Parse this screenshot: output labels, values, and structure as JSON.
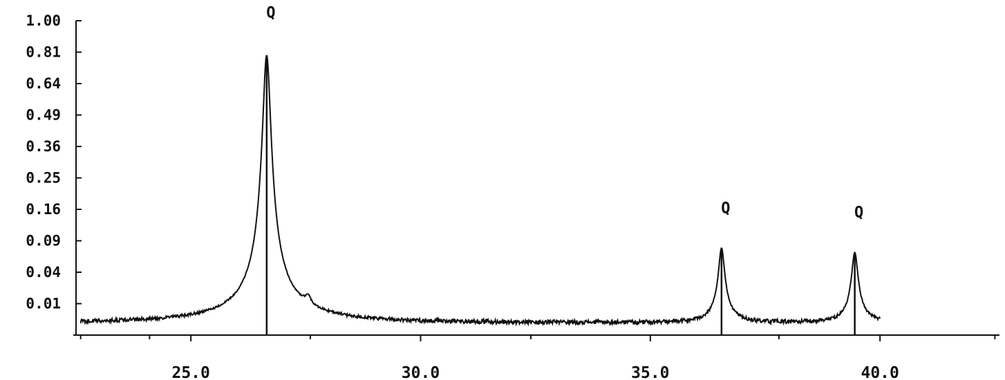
{
  "chart_data": {
    "type": "line",
    "title": "",
    "xlabel": "",
    "ylabel": "",
    "top_fragments": [
      "",
      ""
    ],
    "y_scale": "sqrt",
    "ylim": [
      0,
      1.0
    ],
    "xlim": [
      22.5,
      42.6
    ],
    "y_ticks": [
      {
        "v": 1.0,
        "label": "1.00"
      },
      {
        "v": 0.81,
        "label": "0.81"
      },
      {
        "v": 0.64,
        "label": "0.64"
      },
      {
        "v": 0.49,
        "label": "0.49"
      },
      {
        "v": 0.36,
        "label": "0.36"
      },
      {
        "v": 0.25,
        "label": "0.25"
      },
      {
        "v": 0.16,
        "label": "0.16"
      },
      {
        "v": 0.09,
        "label": "0.09"
      },
      {
        "v": 0.04,
        "label": "0.04"
      },
      {
        "v": 0.01,
        "label": "0.01"
      }
    ],
    "x_ticks": [
      {
        "v": 25.0,
        "label": "25.0"
      },
      {
        "v": 30.0,
        "label": "30.0"
      },
      {
        "v": 35.0,
        "label": "35.0"
      },
      {
        "v": 40.0,
        "label": "40.0"
      }
    ],
    "x_minor_ticks": [
      22.6,
      24.1,
      27.6,
      32.4,
      37.8,
      42.5
    ],
    "baseline": 0.0015,
    "noise": 0.0006,
    "peaks": [
      {
        "x": 26.65,
        "y": 0.79,
        "label": "Q"
      },
      {
        "x": 27.55,
        "y": 0.006,
        "label": ""
      },
      {
        "x": 36.55,
        "y": 0.075,
        "label": "Q"
      },
      {
        "x": 39.45,
        "y": 0.068,
        "label": "Q"
      }
    ],
    "series": [
      {
        "x_start": 22.6,
        "x_end": 40.0
      }
    ],
    "grid": false
  }
}
